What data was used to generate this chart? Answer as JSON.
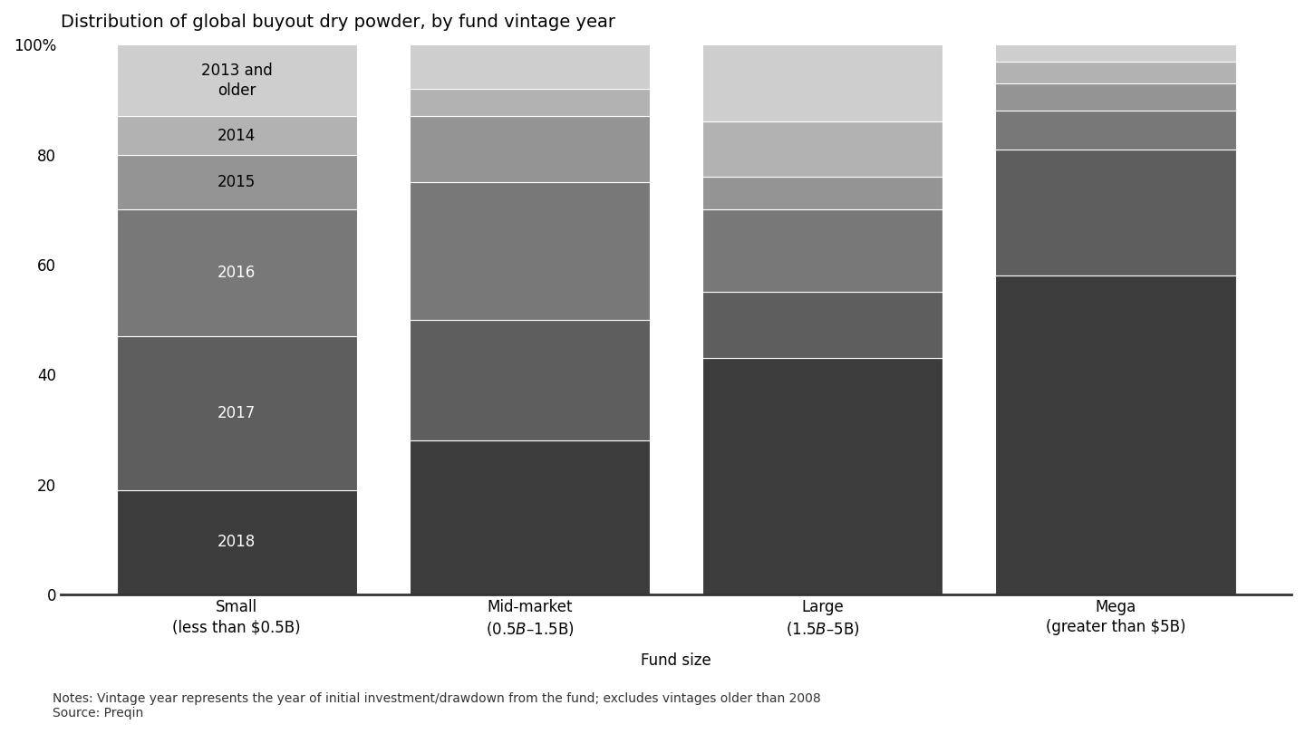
{
  "title": "Distribution of global buyout dry powder, by fund vintage year",
  "xlabel": "Fund size",
  "categories": [
    "Small\n(less than $0.5B)",
    "Mid-market\n($0.5B–$1.5B)",
    "Large\n($1.5B–$5B)",
    "Mega\n(greater than $5B)"
  ],
  "segments": [
    "2018",
    "2017",
    "2016",
    "2015",
    "2014",
    "2013 and\nolder"
  ],
  "data": {
    "Small\n(less than $0.5B)": [
      19,
      28,
      23,
      10,
      7,
      13
    ],
    "Mid-market\n($0.5B–$1.5B)": [
      28,
      22,
      25,
      12,
      5,
      8
    ],
    "Large\n($1.5B–$5B)": [
      43,
      12,
      15,
      6,
      10,
      14
    ],
    "Mega\n(greater than $5B)": [
      58,
      23,
      7,
      5,
      4,
      3
    ]
  },
  "colors": [
    "#3c3c3c",
    "#5e5e5e",
    "#787878",
    "#949494",
    "#b2b2b2",
    "#cecece"
  ],
  "label_colors": [
    "white",
    "white",
    "white",
    "black",
    "black",
    "black"
  ],
  "background_color": "#ffffff",
  "notes": "Notes: Vintage year represents the year of initial investment/drawdown from the fund; excludes vintages older than 2008\nSource: Preqin",
  "title_fontsize": 14,
  "tick_fontsize": 12,
  "label_fontsize": 12,
  "notes_fontsize": 10,
  "ylim": [
    0,
    100
  ],
  "yticks": [
    0,
    20,
    40,
    60,
    80,
    100
  ],
  "yticklabels": [
    "0",
    "20",
    "40",
    "60",
    "80",
    "100%"
  ],
  "bar_width": 0.82,
  "x_positions": [
    0,
    1,
    2,
    3
  ]
}
